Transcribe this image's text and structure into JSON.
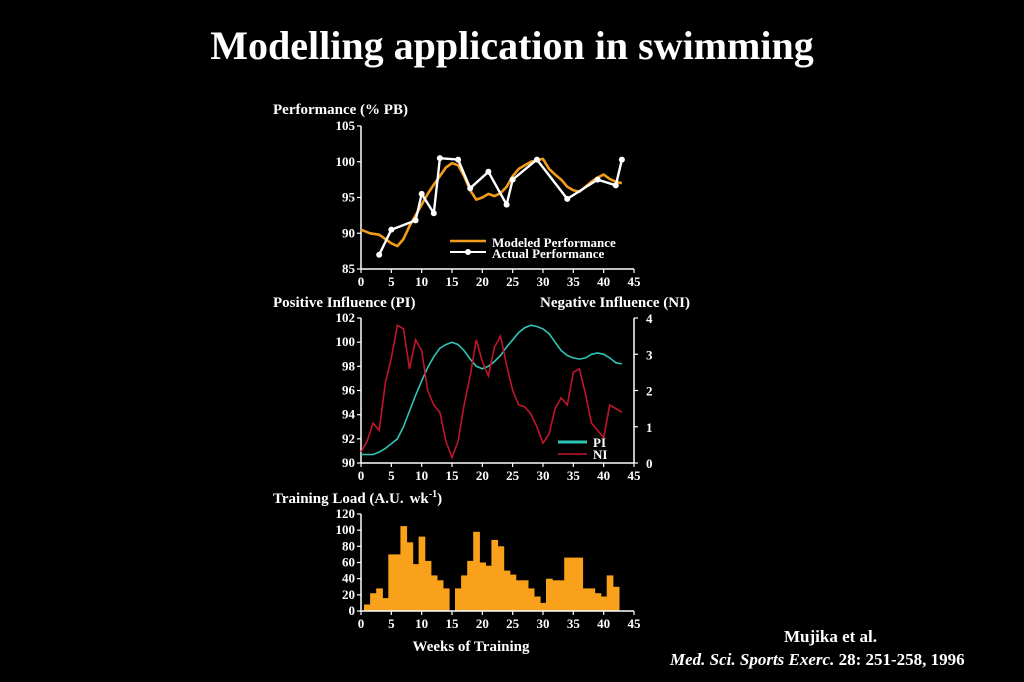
{
  "title": "Modelling application in swimming",
  "citation": {
    "authors": "Mujika et al.",
    "journal": "Med. Sci. Sports Exerc.",
    "details": " 28: 251-258, 1996"
  },
  "colors": {
    "modeled": "#f39c1c",
    "actual": "#ffffff",
    "pi": "#2ec4b6",
    "ni": "#c0152a",
    "load": "#f9a11b"
  },
  "chart_data": [
    {
      "type": "line",
      "ylabel": "Performance (% PB)",
      "xlim": [
        0,
        45
      ],
      "ylim": [
        85,
        105
      ],
      "xticks": [
        0,
        5,
        10,
        15,
        20,
        25,
        30,
        35,
        40,
        45
      ],
      "yticks": [
        85,
        90,
        95,
        100,
        105
      ],
      "legend_position": "bottom-right",
      "series": [
        {
          "name": "Modeled Performance",
          "markers": false,
          "x": [
            0,
            1.5,
            3,
            4,
            5,
            6,
            7,
            8,
            9,
            10,
            11,
            12,
            13,
            14,
            15,
            16,
            17,
            18,
            19,
            20,
            21,
            22,
            23,
            24,
            25,
            26,
            27,
            28,
            29,
            30,
            31,
            32,
            33,
            34,
            35,
            36,
            37,
            38,
            39,
            40,
            41,
            42,
            43
          ],
          "y": [
            90.5,
            90,
            89.8,
            89.2,
            88.6,
            88.2,
            89.2,
            91,
            92.5,
            94,
            95.5,
            96.8,
            98,
            99.2,
            99.8,
            99.5,
            98,
            96,
            94.7,
            95,
            95.5,
            95.2,
            95.6,
            96.5,
            98,
            99,
            99.5,
            100,
            100.2,
            100.4,
            99,
            98.2,
            97.5,
            96.5,
            96,
            95.8,
            96.5,
            97.2,
            97.8,
            98.2,
            97.6,
            97.2,
            97
          ]
        },
        {
          "name": "Actual Performance",
          "markers": true,
          "x": [
            3,
            5,
            9,
            10,
            12,
            13,
            16,
            18,
            21,
            24,
            25,
            29,
            34,
            39,
            42,
            43
          ],
          "y": [
            87,
            90.5,
            91.8,
            95.5,
            92.8,
            100.5,
            100.3,
            96.3,
            98.6,
            94,
            97.5,
            100.3,
            94.8,
            97.5,
            96.7,
            100.3
          ]
        }
      ]
    },
    {
      "type": "line",
      "ylabel": "Positive Influence (PI)",
      "y2label": "Negative Influence (NI)",
      "xlim": [
        0,
        45
      ],
      "ylim": [
        90,
        102
      ],
      "y2lim": [
        0,
        4
      ],
      "xticks": [
        0,
        5,
        10,
        15,
        20,
        25,
        30,
        35,
        40,
        45
      ],
      "yticks": [
        90,
        92,
        94,
        96,
        98,
        100,
        102
      ],
      "y2ticks": [
        0,
        1,
        2,
        3,
        4
      ],
      "legend_position": "bottom-right",
      "series": [
        {
          "name": "PI",
          "axis": "left",
          "x": [
            0,
            1,
            2,
            3,
            4,
            5,
            6,
            7,
            8,
            9,
            10,
            11,
            12,
            13,
            14,
            15,
            16,
            17,
            18,
            19,
            20,
            21,
            22,
            23,
            24,
            25,
            26,
            27,
            28,
            29,
            30,
            31,
            32,
            33,
            34,
            35,
            36,
            37,
            38,
            39,
            40,
            41,
            42,
            43
          ],
          "y": [
            90.7,
            90.7,
            90.7,
            90.9,
            91.2,
            91.6,
            92,
            93,
            94.3,
            95.6,
            96.8,
            97.9,
            98.8,
            99.5,
            99.8,
            100,
            99.8,
            99.3,
            98.6,
            98,
            97.8,
            98,
            98.4,
            98.9,
            99.6,
            100.2,
            100.8,
            101.2,
            101.4,
            101.3,
            101.1,
            100.7,
            100,
            99.3,
            98.9,
            98.7,
            98.6,
            98.7,
            99,
            99.1,
            99,
            98.7,
            98.3,
            98.2
          ]
        },
        {
          "name": "NI",
          "axis": "right",
          "x": [
            0,
            1,
            2,
            3,
            4,
            5,
            6,
            7,
            8,
            9,
            10,
            11,
            12,
            13,
            14,
            15,
            16,
            17,
            18,
            19,
            20,
            21,
            22,
            23,
            24,
            25,
            26,
            27,
            28,
            29,
            30,
            31,
            32,
            33,
            34,
            35,
            36,
            37,
            38,
            39,
            40,
            41,
            42,
            43
          ],
          "y": [
            0.3,
            0.6,
            1.1,
            0.9,
            2.2,
            2.9,
            3.8,
            3.7,
            2.6,
            3.4,
            3.1,
            2.0,
            1.6,
            1.4,
            0.6,
            0.15,
            0.6,
            1.6,
            2.4,
            3.4,
            2.8,
            2.4,
            3.2,
            3.5,
            2.7,
            2.0,
            1.6,
            1.55,
            1.35,
            1.0,
            0.55,
            0.8,
            1.5,
            1.8,
            1.6,
            2.5,
            2.6,
            1.9,
            1.1,
            0.9,
            0.7,
            1.6,
            1.5,
            1.4
          ]
        }
      ]
    },
    {
      "type": "bar",
      "ylabel": "Training Load (A.U.",
      "ylabel_sub": "-1",
      "ylabel_unit": "wk",
      "xlabel": "Weeks of Training",
      "xlim": [
        0,
        45
      ],
      "ylim": [
        0,
        120
      ],
      "xticks": [
        0,
        5,
        10,
        15,
        20,
        25,
        30,
        35,
        40,
        45
      ],
      "yticks": [
        0,
        20,
        40,
        60,
        80,
        100,
        120
      ],
      "x": [
        1,
        2,
        3,
        4,
        5,
        6,
        7,
        8,
        9,
        10,
        11,
        12,
        13,
        14,
        15,
        16,
        17,
        18,
        19,
        20,
        21,
        22,
        23,
        24,
        25,
        26,
        27,
        28,
        29,
        30,
        31,
        32,
        33,
        34,
        35,
        36,
        37,
        38,
        39,
        40,
        41,
        42,
        43
      ],
      "values": [
        8,
        22,
        28,
        16,
        70,
        70,
        105,
        85,
        58,
        92,
        62,
        44,
        38,
        28,
        0,
        28,
        44,
        62,
        98,
        60,
        56,
        88,
        80,
        50,
        45,
        38,
        38,
        28,
        18,
        10,
        40,
        38,
        38,
        66,
        66,
        66,
        28,
        28,
        22,
        18,
        44,
        30,
        0
      ]
    }
  ]
}
